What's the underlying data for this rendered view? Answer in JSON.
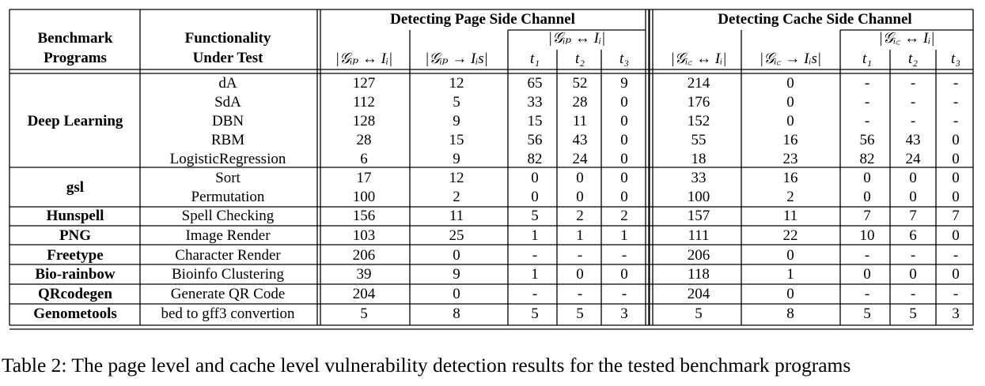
{
  "header": {
    "col1": [
      "Benchmark",
      "Programs"
    ],
    "col2": [
      "Functionality",
      "Under Test"
    ],
    "group_page": "Detecting Page Side Channel",
    "group_cache": "Detecting Cache Side Channel",
    "sub_page": "|𝒢ᵢₚ ↔ Iᵢ|",
    "sub_cache": "|𝒢ᵢ꜀ ↔ Iᵢ|",
    "page_cols": [
      "|𝒢ᵢₚ ↔ Iᵢ|",
      "|𝒢ᵢₚ → Iᵢs|",
      "t₁",
      "t₂",
      "t₃"
    ],
    "cache_cols": [
      "|𝒢ᵢ꜀ ↔ Iᵢ|",
      "|𝒢ᵢ꜀ → Iᵢs|",
      "t₁",
      "t₂",
      "t₃"
    ]
  },
  "rows": [
    {
      "func": "dA",
      "v": [
        "127",
        "12",
        "65",
        "52",
        "9",
        "214",
        "0",
        "-",
        "-",
        "-"
      ]
    },
    {
      "func": "SdA",
      "v": [
        "112",
        "5",
        "33",
        "28",
        "0",
        "176",
        "0",
        "-",
        "-",
        "-"
      ]
    },
    {
      "func": "DBN",
      "v": [
        "128",
        "9",
        "15",
        "11",
        "0",
        "152",
        "0",
        "-",
        "-",
        "-"
      ]
    },
    {
      "func": "RBM",
      "v": [
        "28",
        "15",
        "56",
        "43",
        "0",
        "55",
        "16",
        "56",
        "43",
        "0"
      ]
    },
    {
      "func": "LogisticRegression",
      "v": [
        "6",
        "9",
        "82",
        "24",
        "0",
        "18",
        "23",
        "82",
        "24",
        "0"
      ]
    },
    {
      "func": "Sort",
      "v": [
        "17",
        "12",
        "0",
        "0",
        "0",
        "33",
        "16",
        "0",
        "0",
        "0"
      ]
    },
    {
      "func": "Permutation",
      "v": [
        "100",
        "2",
        "0",
        "0",
        "0",
        "100",
        "2",
        "0",
        "0",
        "0"
      ]
    },
    {
      "func": "Spell Checking",
      "v": [
        "156",
        "11",
        "5",
        "2",
        "2",
        "157",
        "11",
        "7",
        "7",
        "7"
      ]
    },
    {
      "func": "Image Render",
      "v": [
        "103",
        "25",
        "1",
        "1",
        "1",
        "111",
        "22",
        "10",
        "6",
        "0"
      ]
    },
    {
      "func": "Character Render",
      "v": [
        "206",
        "0",
        "-",
        "-",
        "-",
        "206",
        "0",
        "-",
        "-",
        "-"
      ]
    },
    {
      "func": "Bioinfo Clustering",
      "v": [
        "39",
        "9",
        "1",
        "0",
        "0",
        "118",
        "1",
        "0",
        "0",
        "0"
      ]
    },
    {
      "func": "Generate QR Code",
      "v": [
        "204",
        "0",
        "-",
        "-",
        "-",
        "204",
        "0",
        "-",
        "-",
        "-"
      ]
    },
    {
      "func": "bed to gff3 convertion",
      "v": [
        "5",
        "8",
        "5",
        "5",
        "3",
        "5",
        "8",
        "5",
        "5",
        "3"
      ]
    }
  ],
  "groups": [
    {
      "name": "Deep Learning",
      "rows": [
        0,
        1,
        2,
        3,
        4
      ]
    },
    {
      "name": "gsl",
      "rows": [
        5,
        6
      ]
    },
    {
      "name": "Hunspell",
      "rows": [
        7
      ]
    },
    {
      "name": "PNG",
      "rows": [
        8
      ]
    },
    {
      "name": "Freetype",
      "rows": [
        9
      ]
    },
    {
      "name": "Bio-rainbow",
      "rows": [
        10
      ]
    },
    {
      "name": "QRcodegen",
      "rows": [
        11
      ]
    },
    {
      "name": "Genometools",
      "rows": [
        12
      ]
    }
  ],
  "caption": "Table 2: The page level and cache level vulnerability detection results for the tested benchmark programs"
}
